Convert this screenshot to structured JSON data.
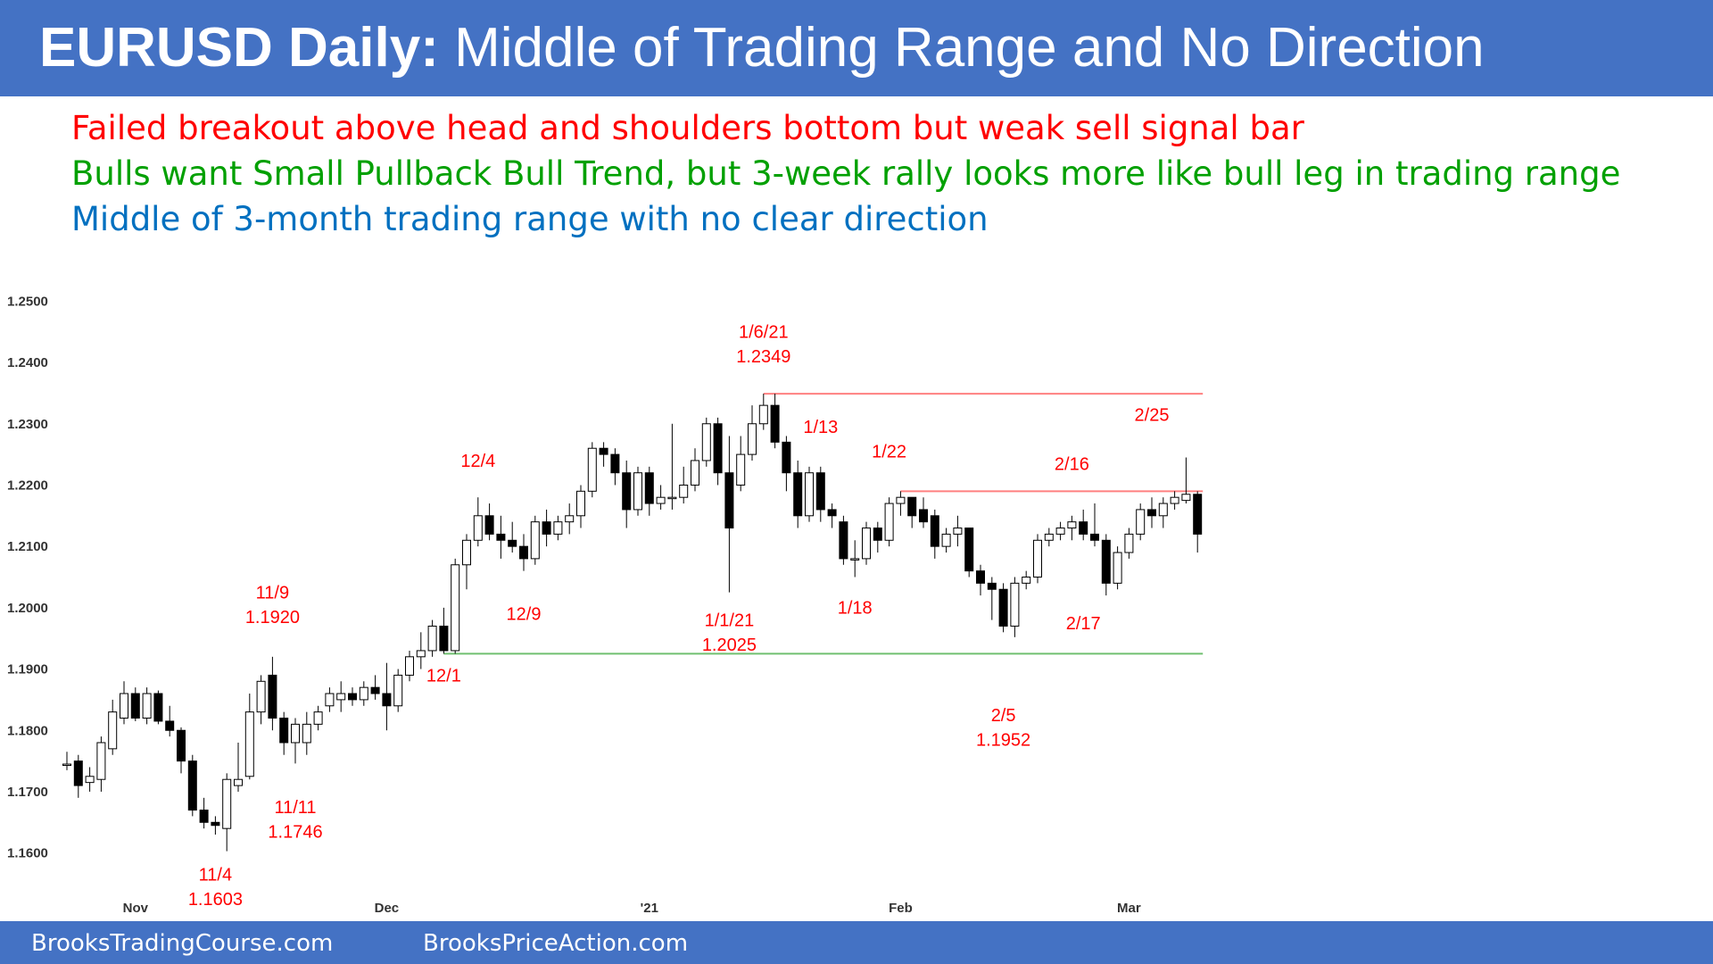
{
  "header": {
    "title_bold": "EURUSD Daily:",
    "title_rest": " Middle of Trading Range and No Direction"
  },
  "bullets": [
    {
      "text": "Failed breakout above head and shoulders bottom but weak sell signal bar",
      "color": "#ff0000"
    },
    {
      "text": "Bulls want Small Pullback Bull Trend, but 3-week rally looks more like bull leg in trading range",
      "color": "#00a000"
    },
    {
      "text": "Middle of 3-month trading range with no clear direction",
      "color": "#0070c0"
    }
  ],
  "footer": {
    "left": "BrooksTradingCourse.com",
    "right": "BrooksPriceAction.com"
  },
  "colors": {
    "header_bg": "#4472c4",
    "annotation": "#ff0000",
    "resistance_line": "#ff8080",
    "support_line": "#70c070",
    "bull_candle": "#ffffff",
    "bear_candle": "#000000"
  },
  "chart_data": {
    "type": "candlestick",
    "instrument": "EURUSD",
    "timeframe": "Daily",
    "ylim": [
      1.155,
      1.255
    ],
    "y_ticks": [
      "1.1600",
      "1.1700",
      "1.1800",
      "1.1900",
      "1.2000",
      "1.2100",
      "1.2200",
      "1.2300",
      "1.2400",
      "1.2500"
    ],
    "x_ticks": [
      {
        "label": "Nov",
        "index": 6
      },
      {
        "label": "Dec",
        "index": 28
      },
      {
        "label": "'21",
        "index": 51
      },
      {
        "label": "Feb",
        "index": 73
      },
      {
        "label": "Mar",
        "index": 93
      }
    ],
    "ohlc": [
      [
        1.1745,
        1.1765,
        1.1735,
        1.1745
      ],
      [
        1.175,
        1.176,
        1.169,
        1.171
      ],
      [
        1.1715,
        1.174,
        1.17,
        1.1725
      ],
      [
        1.172,
        1.179,
        1.17,
        1.178
      ],
      [
        1.177,
        1.185,
        1.176,
        1.183
      ],
      [
        1.182,
        1.188,
        1.181,
        1.186
      ],
      [
        1.186,
        1.187,
        1.1815,
        1.182
      ],
      [
        1.182,
        1.187,
        1.181,
        1.186
      ],
      [
        1.186,
        1.1865,
        1.181,
        1.1815
      ],
      [
        1.1815,
        1.184,
        1.179,
        1.18
      ],
      [
        1.18,
        1.1805,
        1.173,
        1.175
      ],
      [
        1.175,
        1.176,
        1.166,
        1.167
      ],
      [
        1.167,
        1.169,
        1.164,
        1.165
      ],
      [
        1.165,
        1.166,
        1.163,
        1.1645
      ],
      [
        1.164,
        1.173,
        1.1603,
        1.172
      ],
      [
        1.171,
        1.178,
        1.17,
        1.172
      ],
      [
        1.1725,
        1.186,
        1.172,
        1.183
      ],
      [
        1.183,
        1.189,
        1.181,
        1.188
      ],
      [
        1.189,
        1.192,
        1.18,
        1.182
      ],
      [
        1.182,
        1.183,
        1.176,
        1.178
      ],
      [
        1.178,
        1.182,
        1.1746,
        1.181
      ],
      [
        1.178,
        1.183,
        1.176,
        1.181
      ],
      [
        1.181,
        1.184,
        1.18,
        1.183
      ],
      [
        1.184,
        1.187,
        1.183,
        1.186
      ],
      [
        1.185,
        1.188,
        1.183,
        1.186
      ],
      [
        1.186,
        1.187,
        1.184,
        1.185
      ],
      [
        1.185,
        1.188,
        1.184,
        1.187
      ],
      [
        1.187,
        1.189,
        1.185,
        1.186
      ],
      [
        1.186,
        1.191,
        1.18,
        1.184
      ],
      [
        1.184,
        1.19,
        1.183,
        1.189
      ],
      [
        1.189,
        1.193,
        1.188,
        1.192
      ],
      [
        1.192,
        1.196,
        1.19,
        1.193
      ],
      [
        1.193,
        1.198,
        1.192,
        1.197
      ],
      [
        1.197,
        1.2,
        1.1925,
        1.193
      ],
      [
        1.193,
        1.208,
        1.1925,
        1.207
      ],
      [
        1.207,
        1.212,
        1.203,
        1.211
      ],
      [
        1.211,
        1.218,
        1.21,
        1.215
      ],
      [
        1.215,
        1.217,
        1.211,
        1.212
      ],
      [
        1.212,
        1.215,
        1.208,
        1.211
      ],
      [
        1.211,
        1.214,
        1.209,
        1.21
      ],
      [
        1.21,
        1.212,
        1.206,
        1.208
      ],
      [
        1.208,
        1.215,
        1.207,
        1.214
      ],
      [
        1.214,
        1.216,
        1.21,
        1.212
      ],
      [
        1.212,
        1.215,
        1.211,
        1.214
      ],
      [
        1.214,
        1.217,
        1.212,
        1.215
      ],
      [
        1.215,
        1.22,
        1.213,
        1.219
      ],
      [
        1.219,
        1.227,
        1.218,
        1.226
      ],
      [
        1.226,
        1.227,
        1.223,
        1.225
      ],
      [
        1.225,
        1.226,
        1.22,
        1.222
      ],
      [
        1.222,
        1.224,
        1.213,
        1.216
      ],
      [
        1.216,
        1.223,
        1.215,
        1.222
      ],
      [
        1.222,
        1.223,
        1.215,
        1.217
      ],
      [
        1.217,
        1.22,
        1.216,
        1.218
      ],
      [
        1.218,
        1.23,
        1.216,
        1.218
      ],
      [
        1.218,
        1.223,
        1.217,
        1.22
      ],
      [
        1.22,
        1.226,
        1.219,
        1.224
      ],
      [
        1.224,
        1.231,
        1.223,
        1.23
      ],
      [
        1.23,
        1.231,
        1.22,
        1.222
      ],
      [
        1.222,
        1.228,
        1.2025,
        1.213
      ],
      [
        1.22,
        1.228,
        1.219,
        1.225
      ],
      [
        1.225,
        1.233,
        1.224,
        1.23
      ],
      [
        1.23,
        1.2349,
        1.229,
        1.233
      ],
      [
        1.233,
        1.2349,
        1.226,
        1.227
      ],
      [
        1.227,
        1.228,
        1.219,
        1.222
      ],
      [
        1.222,
        1.224,
        1.213,
        1.215
      ],
      [
        1.215,
        1.223,
        1.214,
        1.222
      ],
      [
        1.222,
        1.223,
        1.214,
        1.216
      ],
      [
        1.216,
        1.217,
        1.213,
        1.215
      ],
      [
        1.214,
        1.215,
        1.207,
        1.208
      ],
      [
        1.208,
        1.211,
        1.205,
        1.208
      ],
      [
        1.208,
        1.214,
        1.207,
        1.213
      ],
      [
        1.213,
        1.214,
        1.209,
        1.211
      ],
      [
        1.211,
        1.218,
        1.21,
        1.217
      ],
      [
        1.217,
        1.219,
        1.215,
        1.218
      ],
      [
        1.218,
        1.218,
        1.213,
        1.215
      ],
      [
        1.216,
        1.218,
        1.213,
        1.214
      ],
      [
        1.215,
        1.216,
        1.208,
        1.21
      ],
      [
        1.21,
        1.213,
        1.209,
        1.212
      ],
      [
        1.212,
        1.215,
        1.21,
        1.213
      ],
      [
        1.213,
        1.213,
        1.205,
        1.206
      ],
      [
        1.206,
        1.207,
        1.202,
        1.204
      ],
      [
        1.204,
        1.205,
        1.198,
        1.203
      ],
      [
        1.203,
        1.204,
        1.196,
        1.197
      ],
      [
        1.197,
        1.205,
        1.1952,
        1.204
      ],
      [
        1.204,
        1.206,
        1.203,
        1.205
      ],
      [
        1.205,
        1.212,
        1.204,
        1.211
      ],
      [
        1.211,
        1.213,
        1.21,
        1.212
      ],
      [
        1.212,
        1.214,
        1.211,
        1.213
      ],
      [
        1.213,
        1.215,
        1.211,
        1.214
      ],
      [
        1.214,
        1.216,
        1.211,
        1.212
      ],
      [
        1.212,
        1.217,
        1.21,
        1.211
      ],
      [
        1.211,
        1.212,
        1.202,
        1.204
      ],
      [
        1.204,
        1.21,
        1.203,
        1.209
      ],
      [
        1.209,
        1.213,
        1.208,
        1.212
      ],
      [
        1.212,
        1.217,
        1.211,
        1.216
      ],
      [
        1.216,
        1.218,
        1.213,
        1.215
      ],
      [
        1.215,
        1.218,
        1.213,
        1.217
      ],
      [
        1.217,
        1.219,
        1.216,
        1.218
      ],
      [
        1.2175,
        1.2245,
        1.217,
        1.2185
      ],
      [
        1.2185,
        1.219,
        1.209,
        1.212
      ]
    ],
    "levels": [
      {
        "name": "resistance-high",
        "price": 1.2349,
        "from_index": 61,
        "to_index": 99,
        "color": "#ff8080"
      },
      {
        "name": "resistance-1-22",
        "price": 1.219,
        "from_index": 73,
        "to_index": 99,
        "color": "#ff8080"
      },
      {
        "name": "support-12-1",
        "price": 1.1925,
        "from_index": 33,
        "to_index": 99,
        "color": "#70c070"
      }
    ],
    "annotations": [
      {
        "text": "11/4",
        "index": 13,
        "price": 1.1555
      },
      {
        "text": "1.1603",
        "index": 13,
        "price": 1.1515
      },
      {
        "text": "11/9",
        "index": 18,
        "price": 1.2015
      },
      {
        "text": "1.1920",
        "index": 18,
        "price": 1.1975
      },
      {
        "text": "11/11",
        "index": 20,
        "price": 1.1665
      },
      {
        "text": "1.1746",
        "index": 20,
        "price": 1.1625
      },
      {
        "text": "12/1",
        "index": 33,
        "price": 1.188
      },
      {
        "text": "12/4",
        "index": 36,
        "price": 1.223
      },
      {
        "text": "12/9",
        "index": 40,
        "price": 1.198
      },
      {
        "text": "1/1/21",
        "index": 58,
        "price": 1.197
      },
      {
        "text": "1.2025",
        "index": 58,
        "price": 1.193
      },
      {
        "text": "1/6/21",
        "index": 61,
        "price": 1.244
      },
      {
        "text": "1.2349",
        "index": 61,
        "price": 1.24
      },
      {
        "text": "1/13",
        "index": 66,
        "price": 1.2285
      },
      {
        "text": "1/18",
        "index": 69,
        "price": 1.199
      },
      {
        "text": "1/22",
        "index": 72,
        "price": 1.2245
      },
      {
        "text": "2/5",
        "index": 82,
        "price": 1.1815
      },
      {
        "text": "1.1952",
        "index": 82,
        "price": 1.1775
      },
      {
        "text": "2/16",
        "index": 88,
        "price": 1.2225
      },
      {
        "text": "2/17",
        "index": 89,
        "price": 1.1965
      },
      {
        "text": "2/25",
        "index": 95,
        "price": 1.2305
      }
    ]
  }
}
